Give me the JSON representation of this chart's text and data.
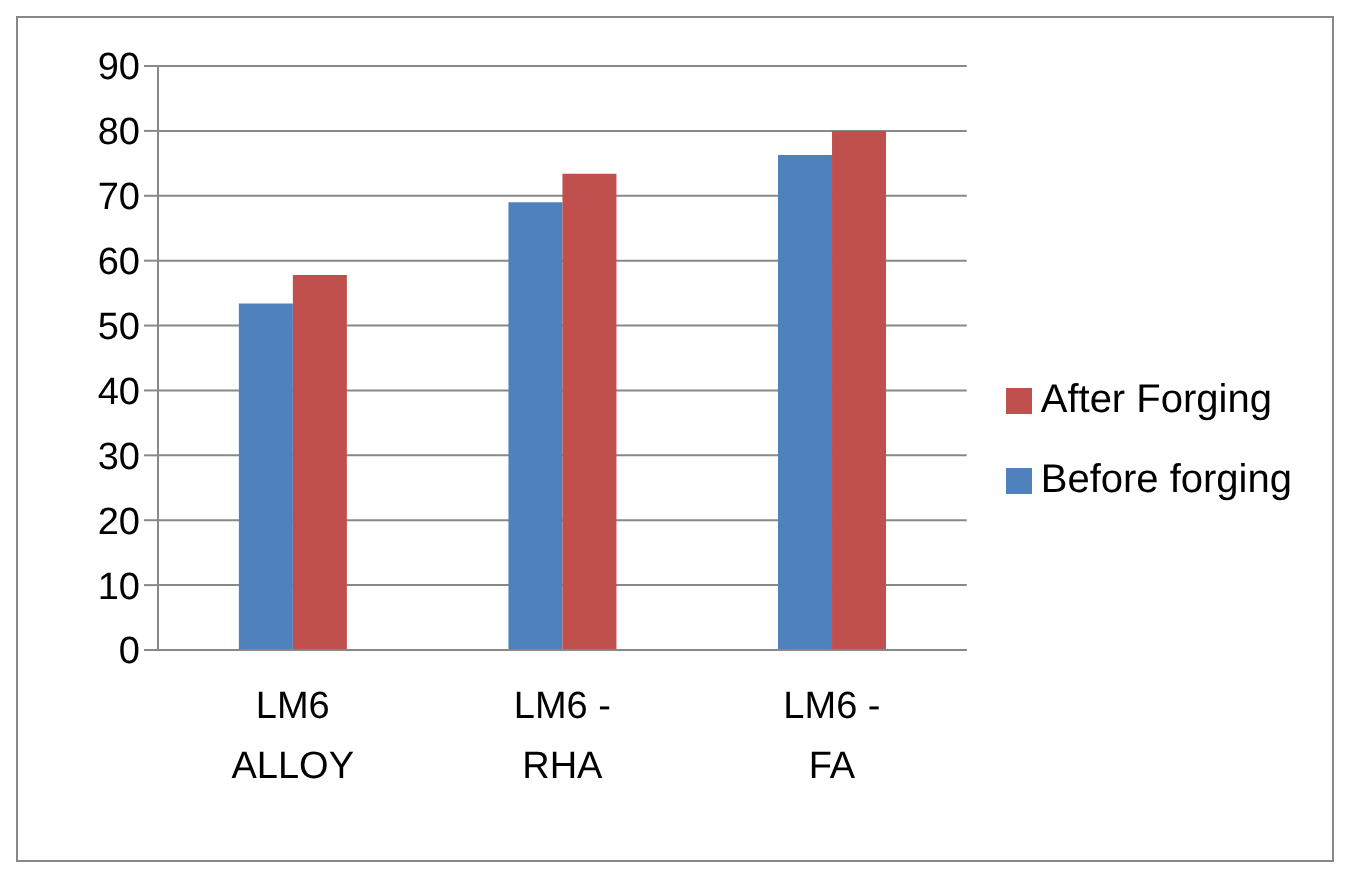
{
  "chart_data": {
    "type": "bar",
    "categories": [
      "LM6 ALLOY",
      "LM6 - RHA",
      "LM6 - FA"
    ],
    "series": [
      {
        "name": "Before forging",
        "color": "#4f81bd",
        "values": [
          53.4,
          69,
          76.3
        ]
      },
      {
        "name": "After Forging",
        "color": "#c0504d",
        "values": [
          57.8,
          73.4,
          80
        ]
      }
    ],
    "ylim": [
      0,
      90
    ],
    "yticks": [
      0,
      10,
      20,
      30,
      40,
      50,
      60,
      70,
      80,
      90
    ],
    "grid": "y",
    "legend": "right"
  }
}
